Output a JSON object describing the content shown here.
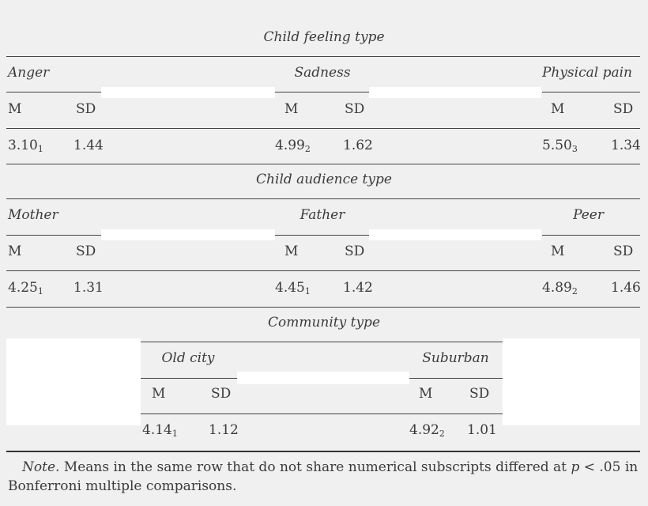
{
  "table": {
    "sections": [
      {
        "title": "Child feeling type",
        "groups": [
          {
            "name": "Anger",
            "m_label": "M",
            "sd_label": "SD",
            "m": "3.10",
            "m_sub": "1",
            "sd": "1.44"
          },
          {
            "name": "Sadness",
            "m_label": "M",
            "sd_label": "SD",
            "m": "4.99",
            "m_sub": "2",
            "sd": "1.62"
          },
          {
            "name": "Physical pain",
            "m_label": "M",
            "sd_label": "SD",
            "m": "5.50",
            "m_sub": "3",
            "sd": "1.34"
          }
        ]
      },
      {
        "title": "Child audience type",
        "groups": [
          {
            "name": "Mother",
            "m_label": "M",
            "sd_label": "SD",
            "m": "4.25",
            "m_sub": "1",
            "sd": "1.31"
          },
          {
            "name": "Father",
            "m_label": "M",
            "sd_label": "SD",
            "m": "4.45",
            "m_sub": "1",
            "sd": "1.42"
          },
          {
            "name": "Peer",
            "m_label": "M",
            "sd_label": "SD",
            "m": "4.89",
            "m_sub": "2",
            "sd": "1.46"
          }
        ]
      },
      {
        "title": "Community type",
        "groups": [
          {
            "name": "Old city",
            "m_label": "M",
            "sd_label": "SD",
            "m": "4.14",
            "m_sub": "1",
            "sd": "1.12"
          },
          {
            "name": "Suburban",
            "m_label": "M",
            "sd_label": "SD",
            "m": "4.92",
            "m_sub": "2",
            "sd": "1.01"
          }
        ]
      }
    ]
  },
  "note": {
    "label": "Note.",
    "text_before_p": "Means in the same row that do not share numerical subscripts differed at",
    "p": "p",
    "text_after_p": "< .05 in",
    "line2": "Bonferroni multiple comparisons."
  }
}
